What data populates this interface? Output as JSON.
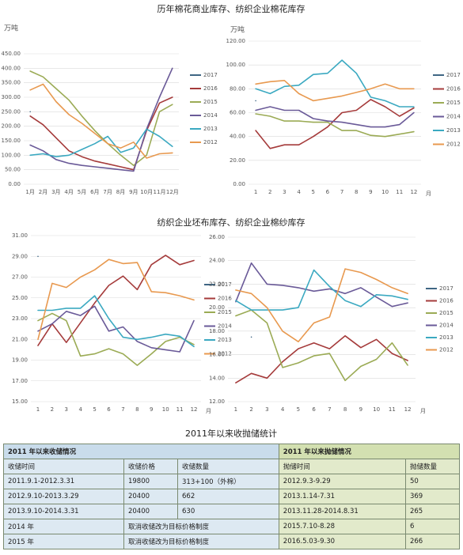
{
  "titles": [
    "历年棉花商业库存、纺织企业棉花库存",
    "纺织企业坯布库存、纺织企业棉纱库存",
    "2011年以来收抛储统计"
  ],
  "chart_data": [
    {
      "type": "line",
      "y_label": "万吨",
      "categories": [
        "1月",
        "2月",
        "3月",
        "4月",
        "5月",
        "6月",
        "7月",
        "8月",
        "9月",
        "10月",
        "11月",
        "12月"
      ],
      "ylim": [
        0,
        450
      ],
      "grid": true,
      "yticks": [
        {
          "value": 0,
          "label": "0.00"
        },
        {
          "value": 50,
          "label": "50.00"
        },
        {
          "value": 100,
          "label": "100.00"
        },
        {
          "value": 150,
          "label": "150.00"
        },
        {
          "value": 200,
          "label": "200.00"
        },
        {
          "value": 250,
          "label": "250.00"
        },
        {
          "value": 300,
          "label": "300.00"
        },
        {
          "value": 350,
          "label": "350.00"
        },
        {
          "value": 400,
          "label": "400.00"
        },
        {
          "value": 450,
          "label": "450.00"
        }
      ],
      "series": [
        {
          "name": "2017",
          "color": "#3f6684",
          "values": [
            250,
            null,
            null,
            null,
            null,
            null,
            null,
            null,
            null,
            null,
            null,
            null
          ]
        },
        {
          "name": "2016",
          "color": "#a53b3b",
          "values": [
            235,
            205,
            160,
            115,
            95,
            80,
            70,
            60,
            50,
            185,
            280,
            300
          ]
        },
        {
          "name": "2015",
          "color": "#9bab55",
          "values": [
            390,
            370,
            330,
            290,
            235,
            185,
            140,
            100,
            65,
            100,
            250,
            275
          ]
        },
        {
          "name": "2014",
          "color": "#6a5a98",
          "values": [
            135,
            115,
            85,
            72,
            65,
            60,
            55,
            50,
            45,
            190,
            300,
            400
          ]
        },
        {
          "name": "2013",
          "color": "#3ba9c1",
          "values": [
            100,
            105,
            95,
            100,
            120,
            140,
            165,
            110,
            125,
            190,
            165,
            130
          ]
        },
        {
          "name": "2012",
          "color": "#e8994f",
          "values": [
            325,
            345,
            285,
            240,
            210,
            175,
            140,
            125,
            145,
            90,
            105,
            108
          ]
        }
      ]
    },
    {
      "type": "line",
      "y_label": "万吨",
      "x_label": "月",
      "categories": [
        "1",
        "2",
        "3",
        "4",
        "5",
        "6",
        "7",
        "8",
        "9",
        "10",
        "11",
        "12"
      ],
      "ylim": [
        0,
        120
      ],
      "grid": true,
      "yticks": [
        {
          "value": 0,
          "label": "0.00"
        },
        {
          "value": 20,
          "label": "20.00"
        },
        {
          "value": 40,
          "label": "40.00"
        },
        {
          "value": 60,
          "label": "60.00"
        },
        {
          "value": 80,
          "label": "80.00"
        },
        {
          "value": 100,
          "label": "100.00"
        },
        {
          "value": 120,
          "label": "120.00"
        }
      ],
      "series": [
        {
          "name": "2017",
          "color": "#3f6684",
          "values": [
            70,
            null,
            null,
            null,
            null,
            null,
            null,
            null,
            null,
            null,
            null,
            null
          ]
        },
        {
          "name": "2016",
          "color": "#a53b3b",
          "values": [
            45,
            30,
            33,
            33,
            40,
            48,
            60,
            62,
            71,
            65,
            57,
            64
          ]
        },
        {
          "name": "2015",
          "color": "#9bab55",
          "values": [
            59,
            57,
            53,
            53,
            52,
            52,
            45,
            45,
            41,
            40,
            42,
            44
          ]
        },
        {
          "name": "2014",
          "color": "#6a5a98",
          "values": [
            62,
            65,
            62,
            62,
            55,
            53,
            52,
            50,
            48,
            48,
            50,
            60
          ]
        },
        {
          "name": "2013",
          "color": "#3ba9c1",
          "values": [
            80,
            76,
            82,
            83,
            92,
            93,
            104,
            93,
            73,
            70,
            65,
            65
          ]
        },
        {
          "name": "2012",
          "color": "#e8994f",
          "values": [
            84,
            86,
            87,
            76,
            70,
            72,
            74,
            77,
            80,
            84,
            80,
            80
          ]
        }
      ]
    },
    {
      "type": "line",
      "x_label": "月",
      "categories": [
        "1",
        "2",
        "3",
        "4",
        "5",
        "6",
        "7",
        "8",
        "9",
        "10",
        "11",
        "12"
      ],
      "ylim": [
        15,
        31
      ],
      "grid": true,
      "yticks": [
        {
          "value": 15,
          "label": "15.00"
        },
        {
          "value": 17,
          "label": "17.00"
        },
        {
          "value": 19,
          "label": "19.00"
        },
        {
          "value": 21,
          "label": "21.00"
        },
        {
          "value": 23,
          "label": "23.00"
        },
        {
          "value": 25,
          "label": "25.00"
        },
        {
          "value": 27,
          "label": "27.00"
        },
        {
          "value": 29,
          "label": "29.00"
        },
        {
          "value": 31,
          "label": "31.00"
        }
      ],
      "series": [
        {
          "name": "2017",
          "color": "#3f6684",
          "values": [
            29,
            null,
            null,
            null,
            null,
            null,
            null,
            null,
            null,
            null,
            null,
            null
          ]
        },
        {
          "name": "2016",
          "color": "#a53b3b",
          "values": [
            20.4,
            22.5,
            20.7,
            22.6,
            24.5,
            26.2,
            27.1,
            25.8,
            28.2,
            29.1,
            28.2,
            28.6
          ]
        },
        {
          "name": "2015",
          "color": "#9bab55",
          "values": [
            22.8,
            23.5,
            22.8,
            19.4,
            19.6,
            20.1,
            19.6,
            18.5,
            19.6,
            20.8,
            21.2,
            20.5
          ]
        },
        {
          "name": "2014",
          "color": "#6a5a98",
          "values": [
            21.8,
            22.5,
            23.7,
            23.3,
            24.2,
            21.8,
            22.2,
            20.8,
            20.2,
            20,
            19.8,
            22.8
          ]
        },
        {
          "name": "2013",
          "color": "#3ba9c1",
          "values": [
            23.8,
            23.8,
            24,
            24,
            25.2,
            23,
            21.2,
            21,
            21.2,
            21.5,
            21.3,
            20.3
          ]
        },
        {
          "name": "2012",
          "color": "#e8994f",
          "values": [
            21,
            26.4,
            26,
            27,
            27.7,
            28.7,
            28.3,
            28.4,
            25.6,
            25.5,
            25.2,
            24.8
          ]
        }
      ]
    },
    {
      "type": "line",
      "x_label": "月",
      "categories": [
        "1",
        "2",
        "3",
        "4",
        "5",
        "6",
        "7",
        "8",
        "9",
        "10",
        "11",
        "12"
      ],
      "ylim": [
        12,
        26
      ],
      "grid": true,
      "yticks": [
        {
          "value": 12,
          "label": "12.00"
        },
        {
          "value": 14,
          "label": "14.00"
        },
        {
          "value": 16,
          "label": "16.00"
        },
        {
          "value": 18,
          "label": "18.00"
        },
        {
          "value": 20,
          "label": "20.00"
        },
        {
          "value": 22,
          "label": "22.00"
        },
        {
          "value": 24,
          "label": "24.00"
        },
        {
          "value": 26,
          "label": "26.00"
        }
      ],
      "series": [
        {
          "name": "2017",
          "color": "#3f6684",
          "values": [
            null,
            17.5,
            null,
            null,
            null,
            null,
            null,
            null,
            null,
            null,
            null,
            null
          ]
        },
        {
          "name": "2016",
          "color": "#a53b3b",
          "values": [
            13.6,
            14.4,
            14,
            15.4,
            16.5,
            17,
            16.5,
            17.6,
            16.6,
            17.3,
            16.1,
            15.5
          ]
        },
        {
          "name": "2015",
          "color": "#9bab55",
          "values": [
            19.3,
            19.8,
            18.7,
            14.9,
            15.3,
            15.9,
            16.1,
            13.8,
            15,
            15.6,
            17,
            15.1
          ]
        },
        {
          "name": "2014",
          "color": "#6a5a98",
          "values": [
            20.5,
            23.8,
            22,
            21.9,
            21.7,
            21.4,
            21.6,
            21.2,
            21.7,
            20.9,
            20.1,
            20.4
          ]
        },
        {
          "name": "2013",
          "color": "#3ba9c1",
          "values": [
            20.6,
            19.8,
            19.8,
            19.8,
            20,
            23.2,
            21.8,
            20.6,
            20.1,
            21.1,
            21,
            20.7
          ]
        },
        {
          "name": "2012",
          "color": "#e8994f",
          "values": [
            21.5,
            21.2,
            20,
            18,
            17.1,
            18.7,
            19.2,
            23.3,
            23,
            22.4,
            21.7,
            21.2
          ]
        }
      ]
    }
  ],
  "table": {
    "group_headers": [
      "2011 年以来收储情况",
      "2011 年以来抛储情况"
    ],
    "columns": [
      "收储时间",
      "收储价格",
      "收储数量",
      "抛储时间",
      "抛储数量"
    ],
    "rows": [
      [
        "2011.9.1-2012.3.31",
        "19800",
        "313+100（外棉）",
        "2012.9.3-9.29",
        "50"
      ],
      [
        "2012.9.10-2013.3.29",
        "20400",
        "662",
        "2013.1.14-7.31",
        "369"
      ],
      [
        "2013.9.10-2014.3.31",
        "20400",
        "630",
        "2013.11.28-2014.8.31",
        "265"
      ],
      [
        "2014 年",
        "取消收储改为目标价格制度",
        "2015.7.10-8.28",
        "6"
      ],
      [
        "2015 年",
        "取消收储改为目标价格制度",
        "2016.5.03-9.30",
        "266"
      ]
    ]
  }
}
